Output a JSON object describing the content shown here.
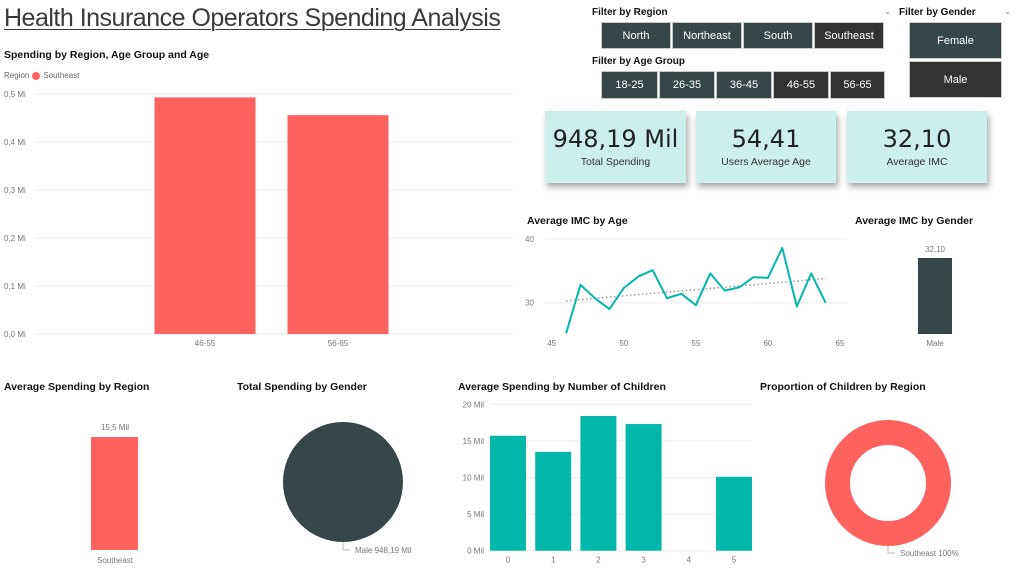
{
  "page": {
    "title": "Health Insurance Operators Spending Analysis"
  },
  "colors": {
    "coral": "#FD625E",
    "teal": "#01B8AA",
    "dark_slate": "#374649",
    "selected": "#333333",
    "kpi_bg": "#CBEFEC",
    "grid": "#EEEEEE",
    "axis_text": "#777777",
    "trend": "#999999"
  },
  "filters": {
    "region": {
      "title": "Filter by Region",
      "options": [
        {
          "label": "North",
          "selected": false
        },
        {
          "label": "Northeast",
          "selected": false
        },
        {
          "label": "South",
          "selected": false
        },
        {
          "label": "Southeast",
          "selected": true
        }
      ]
    },
    "age_group": {
      "title": "Filter by Age Group",
      "options": [
        {
          "label": "18-25",
          "selected": false
        },
        {
          "label": "26-35",
          "selected": false
        },
        {
          "label": "36-45",
          "selected": false
        },
        {
          "label": "46-55",
          "selected": true
        },
        {
          "label": "56-65",
          "selected": true
        }
      ]
    },
    "gender": {
      "title": "Filter by Gender",
      "options": [
        {
          "label": "Female",
          "selected": false
        },
        {
          "label": "Male",
          "selected": true
        }
      ]
    }
  },
  "kpis": [
    {
      "value": "948,19 Mil",
      "label": "Total Spending"
    },
    {
      "value": "54,41",
      "label": "Users Average Age"
    },
    {
      "value": "32,10",
      "label": "Average IMC"
    }
  ],
  "chart_data": [
    {
      "id": "spending_by_region_age",
      "type": "bar",
      "title": "Spending by Region, Age Group and Age",
      "legend": {
        "title": "Region",
        "entries": [
          "Southeast"
        ],
        "position": "top-left"
      },
      "categories": [
        "46-55",
        "56-65"
      ],
      "series": [
        {
          "name": "Southeast",
          "values": [
            0.493,
            0.456
          ]
        }
      ],
      "yticks": [
        "0,0 Mi",
        "0,1 Mi",
        "0,2 Mi",
        "0,3 Mi",
        "0,4 Mi",
        "0,5 Mi"
      ],
      "ylim": [
        0,
        0.5
      ],
      "unit": "Mi",
      "grid": true
    },
    {
      "id": "avg_imc_by_age",
      "type": "line",
      "title": "Average IMC by Age",
      "x": [
        46,
        47,
        48,
        49,
        50,
        51,
        52,
        53,
        54,
        55,
        56,
        57,
        58,
        59,
        60,
        61,
        62,
        63,
        64
      ],
      "series": [
        {
          "name": "Average IMC",
          "values": [
            25.2,
            32.8,
            30.7,
            29.0,
            32.3,
            34.1,
            35.1,
            30.7,
            31.4,
            29.6,
            34.6,
            31.9,
            32.4,
            34.0,
            33.9,
            38.6,
            29.4,
            34.6,
            30.0
          ]
        }
      ],
      "trendline": {
        "start": [
          46,
          30.3
        ],
        "end": [
          64,
          33.8
        ]
      },
      "xticks": [
        "45",
        "50",
        "55",
        "60",
        "65"
      ],
      "xlim": [
        45,
        65
      ],
      "yticks": [
        "30",
        "40"
      ],
      "ylim": [
        25,
        40
      ],
      "grid": true
    },
    {
      "id": "avg_imc_by_gender",
      "type": "bar",
      "title": "Average IMC by Gender",
      "categories": [
        "Male"
      ],
      "values": [
        32.1
      ],
      "data_labels": [
        "32,10"
      ]
    },
    {
      "id": "avg_spending_by_region",
      "type": "bar",
      "title": "Average Spending by Region",
      "categories": [
        "Southeast"
      ],
      "values": [
        15.5
      ],
      "data_labels": [
        "15,5 Mil"
      ]
    },
    {
      "id": "total_spending_by_gender",
      "type": "pie",
      "title": "Total Spending by Gender",
      "slices": [
        {
          "label": "Male",
          "value": 948.19,
          "display": "Male 948,19 Mil"
        }
      ]
    },
    {
      "id": "avg_spending_by_children",
      "type": "bar",
      "title": "Average Spending by Number of Children",
      "categories": [
        "0",
        "1",
        "2",
        "3",
        "4",
        "5"
      ],
      "values": [
        15.7,
        13.5,
        18.4,
        17.3,
        0,
        10.1
      ],
      "yticks": [
        "0 Mil",
        "5 Mil",
        "10 Mil",
        "15 Mil",
        "20 Mil"
      ],
      "ylim": [
        0,
        20
      ],
      "grid": true
    },
    {
      "id": "children_by_region",
      "type": "pie",
      "donut": true,
      "title": "Proportion of Children by Region",
      "slices": [
        {
          "label": "Southeast",
          "value": 100,
          "display": "Southeast 100%"
        }
      ]
    }
  ]
}
